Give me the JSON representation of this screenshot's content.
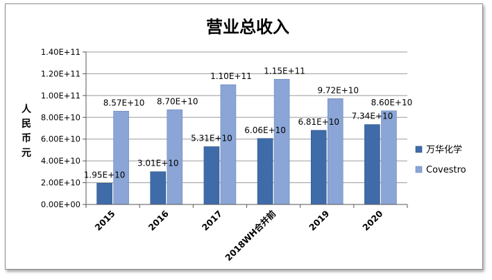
{
  "chart_data": {
    "type": "bar",
    "title": "营业总收入",
    "ylabel": "人民币元",
    "xlabel": "",
    "categories": [
      "2015",
      "2016",
      "2017",
      "2018WH合并前",
      "2019",
      "2020"
    ],
    "series": [
      {
        "name": "万华化学",
        "color": "#3f6ba9",
        "values": [
          19500000000.0,
          30100000000.0,
          53100000000.0,
          60600000000.0,
          68100000000.0,
          73400000000.0
        ],
        "labels": [
          "1.95E+10",
          "3.01E+10",
          "5.31E+10",
          "6.06E+10",
          "6.81E+10",
          "7.34E+10"
        ]
      },
      {
        "name": "Covestro",
        "color": "#8aa5d6",
        "values": [
          85700000000.0,
          87000000000.0,
          110000000000.0,
          115000000000.0,
          97200000000.0,
          86000000000.0
        ],
        "labels": [
          "8.57E+10",
          "8.70E+10",
          "1.10E+11",
          "1.15E+11",
          "9.72E+10",
          "8.60E+10"
        ]
      }
    ],
    "ylim": [
      0,
      140000000000.0
    ],
    "yticks": [
      0,
      20000000000.0,
      40000000000.0,
      60000000000.0,
      80000000000.0,
      100000000000.0,
      120000000000.0,
      140000000000.0
    ],
    "ytick_labels": [
      "0.00E+00",
      "2.00E+10",
      "4.00E+10",
      "6.00E+10",
      "8.00E+10",
      "1.00E+11",
      "1.20E+11",
      "1.40E+11"
    ],
    "grid": true,
    "legend_position": "right"
  }
}
